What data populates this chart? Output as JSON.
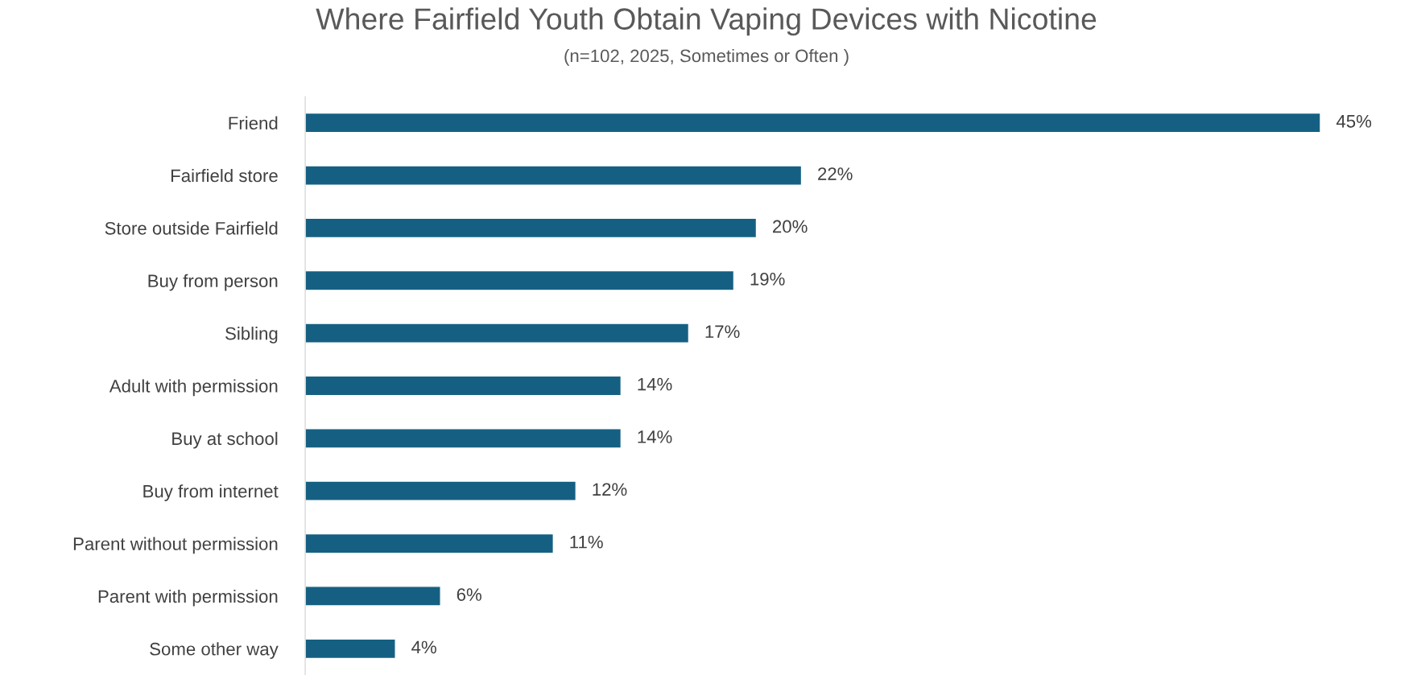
{
  "chart_data": {
    "type": "bar",
    "orientation": "horizontal",
    "title": "Where Fairfield Youth Obtain Vaping Devices with Nicotine",
    "subtitle": "(n=102, 2025, Sometimes or Often )",
    "categories": [
      "Friend",
      "Fairfield store",
      "Store outside Fairfield",
      "Buy from person",
      "Sibling",
      "Adult with permission",
      "Buy at school",
      "Buy from internet",
      "Parent without permission",
      "Parent with permission",
      "Some other way"
    ],
    "values": [
      45,
      22,
      20,
      19,
      17,
      14,
      14,
      12,
      11,
      6,
      4
    ],
    "value_labels": [
      "45%",
      "22%",
      "20%",
      "19%",
      "17%",
      "14%",
      "14%",
      "12%",
      "11%",
      "6%",
      "4%"
    ],
    "color": "#156082",
    "tick_labels": "y",
    "grid": false
  }
}
